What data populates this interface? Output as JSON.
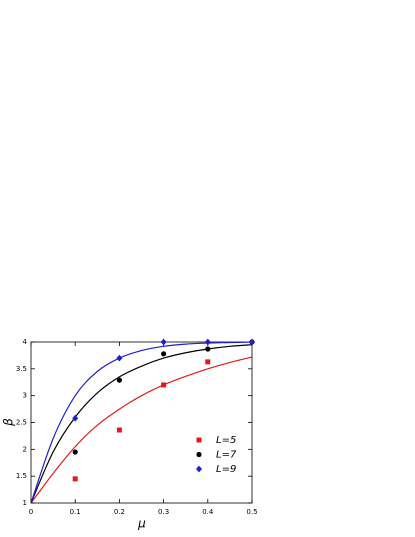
{
  "chart_data": {
    "type": "scatter",
    "xlabel": "μ",
    "ylabel": "β",
    "xlim": [
      0,
      0.5
    ],
    "ylim": [
      1,
      4
    ],
    "xticks": [
      0,
      0.1,
      0.2,
      0.3,
      0.4,
      0.5
    ],
    "yticks": [
      1,
      1.5,
      2,
      2.5,
      3,
      3.5,
      4
    ],
    "legend": "lower right",
    "series": [
      {
        "name": "L=5",
        "color": "#e31a1c",
        "marker": "square",
        "x": [
          0.1,
          0.2,
          0.3,
          0.4
        ],
        "values": [
          1.45,
          2.36,
          3.2,
          3.63
        ],
        "fit": {
          "x": [
            0,
            0.05,
            0.1,
            0.15,
            0.2,
            0.25,
            0.3,
            0.35,
            0.4,
            0.45,
            0.5
          ],
          "values": [
            1,
            1.55,
            2.05,
            2.45,
            2.75,
            3.0,
            3.2,
            3.36,
            3.5,
            3.62,
            3.72
          ]
        }
      },
      {
        "name": "L=7",
        "color": "#000000",
        "marker": "circle",
        "x": [
          0.1,
          0.2,
          0.3,
          0.4,
          0.5
        ],
        "values": [
          1.95,
          3.29,
          3.78,
          3.87,
          4.0
        ],
        "fit": {
          "x": [
            0,
            0.05,
            0.1,
            0.15,
            0.2,
            0.25,
            0.3,
            0.35,
            0.4,
            0.45,
            0.5
          ],
          "values": [
            1,
            1.95,
            2.6,
            3.05,
            3.35,
            3.55,
            3.7,
            3.8,
            3.87,
            3.92,
            3.95
          ]
        }
      },
      {
        "name": "L=9",
        "color": "#1f1fd1",
        "marker": "diamond",
        "x": [
          0.1,
          0.2,
          0.3,
          0.4,
          0.5
        ],
        "values": [
          2.58,
          3.7,
          4.0,
          4.0,
          4.0
        ],
        "fit": {
          "x": [
            0,
            0.05,
            0.1,
            0.15,
            0.2,
            0.25,
            0.3,
            0.35,
            0.4,
            0.45,
            0.5
          ],
          "values": [
            1,
            2.2,
            3.0,
            3.45,
            3.7,
            3.84,
            3.92,
            3.96,
            3.98,
            3.99,
            4.0
          ]
        }
      }
    ]
  }
}
